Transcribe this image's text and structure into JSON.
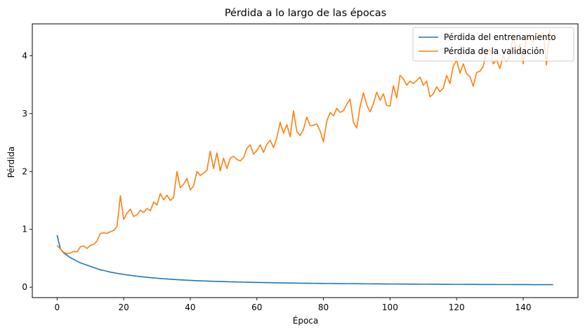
{
  "chart_data": {
    "type": "line",
    "title": "Pérdida a lo largo de las épocas",
    "xlabel": "Época",
    "ylabel": "Pérdida",
    "xlim": [
      -7.45,
      156.45
    ],
    "ylim": [
      -0.18,
      4.55
    ],
    "xticks": [
      0,
      20,
      40,
      60,
      80,
      100,
      120,
      140
    ],
    "yticks": [
      0,
      1,
      2,
      3,
      4
    ],
    "grid": false,
    "legend_position": "top-right",
    "x": [
      0,
      1,
      2,
      3,
      4,
      5,
      6,
      7,
      8,
      9,
      10,
      11,
      12,
      13,
      14,
      15,
      16,
      17,
      18,
      19,
      20,
      21,
      22,
      23,
      24,
      25,
      26,
      27,
      28,
      29,
      30,
      31,
      32,
      33,
      34,
      35,
      36,
      37,
      38,
      39,
      40,
      41,
      42,
      43,
      44,
      45,
      46,
      47,
      48,
      49,
      50,
      51,
      52,
      53,
      54,
      55,
      56,
      57,
      58,
      59,
      60,
      61,
      62,
      63,
      64,
      65,
      66,
      67,
      68,
      69,
      70,
      71,
      72,
      73,
      74,
      75,
      76,
      77,
      78,
      79,
      80,
      81,
      82,
      83,
      84,
      85,
      86,
      87,
      88,
      89,
      90,
      91,
      92,
      93,
      94,
      95,
      96,
      97,
      98,
      99,
      100,
      101,
      102,
      103,
      104,
      105,
      106,
      107,
      108,
      109,
      110,
      111,
      112,
      113,
      114,
      115,
      116,
      117,
      118,
      119,
      120,
      121,
      122,
      123,
      124,
      125,
      126,
      127,
      128,
      129,
      130,
      131,
      132,
      133,
      134,
      135,
      136,
      137,
      138,
      139,
      140,
      141,
      142,
      143,
      144,
      145,
      146,
      147,
      148,
      149
    ],
    "series": [
      {
        "name": "Pérdida del entrenamiento",
        "color": "#1f77b4",
        "values": [
          0.9,
          0.66,
          0.59,
          0.55,
          0.51,
          0.48,
          0.45,
          0.42,
          0.4,
          0.38,
          0.36,
          0.34,
          0.32,
          0.3,
          0.29,
          0.275,
          0.26,
          0.25,
          0.24,
          0.23,
          0.22,
          0.212,
          0.205,
          0.198,
          0.19,
          0.183,
          0.177,
          0.171,
          0.165,
          0.16,
          0.155,
          0.15,
          0.146,
          0.142,
          0.138,
          0.134,
          0.13,
          0.127,
          0.124,
          0.121,
          0.118,
          0.115,
          0.112,
          0.11,
          0.108,
          0.106,
          0.104,
          0.102,
          0.1,
          0.098,
          0.097,
          0.095,
          0.093,
          0.092,
          0.09,
          0.089,
          0.087,
          0.086,
          0.085,
          0.083,
          0.082,
          0.081,
          0.08,
          0.079,
          0.078,
          0.077,
          0.076,
          0.075,
          0.074,
          0.073,
          0.072,
          0.071,
          0.071,
          0.07,
          0.069,
          0.068,
          0.068,
          0.067,
          0.066,
          0.066,
          0.065,
          0.064,
          0.064,
          0.063,
          0.063,
          0.062,
          0.062,
          0.061,
          0.061,
          0.06,
          0.06,
          0.059,
          0.059,
          0.058,
          0.058,
          0.057,
          0.057,
          0.057,
          0.056,
          0.056,
          0.055,
          0.055,
          0.055,
          0.054,
          0.054,
          0.054,
          0.053,
          0.053,
          0.053,
          0.052,
          0.052,
          0.052,
          0.051,
          0.051,
          0.051,
          0.05,
          0.05,
          0.05,
          0.05,
          0.049,
          0.049,
          0.049,
          0.049,
          0.048,
          0.048,
          0.048,
          0.048,
          0.047,
          0.047,
          0.047,
          0.047,
          0.047,
          0.046,
          0.046,
          0.046,
          0.046,
          0.046,
          0.045,
          0.045,
          0.045,
          0.045,
          0.045,
          0.045,
          0.044,
          0.044,
          0.044,
          0.044,
          0.044,
          0.044,
          0.044
        ]
      },
      {
        "name": "Pérdida de la validación",
        "color": "#ff7f0e",
        "values": [
          0.72,
          0.66,
          0.6,
          0.58,
          0.59,
          0.62,
          0.61,
          0.7,
          0.71,
          0.67,
          0.72,
          0.74,
          0.8,
          0.93,
          0.94,
          0.93,
          0.96,
          0.98,
          1.05,
          1.58,
          1.17,
          1.28,
          1.35,
          1.22,
          1.25,
          1.33,
          1.29,
          1.36,
          1.32,
          1.47,
          1.42,
          1.62,
          1.51,
          1.59,
          1.5,
          1.55,
          2.0,
          1.72,
          1.78,
          1.88,
          1.68,
          1.75,
          2.0,
          1.93,
          1.97,
          2.02,
          2.35,
          2.05,
          2.32,
          2.01,
          2.23,
          2.05,
          2.23,
          2.26,
          2.21,
          2.18,
          2.24,
          2.4,
          2.46,
          2.3,
          2.36,
          2.46,
          2.33,
          2.47,
          2.54,
          2.41,
          2.58,
          2.85,
          2.66,
          2.81,
          2.6,
          3.05,
          2.69,
          2.62,
          2.73,
          2.94,
          2.79,
          2.8,
          2.82,
          2.7,
          2.51,
          2.87,
          3.02,
          2.96,
          3.09,
          3.02,
          3.05,
          3.16,
          3.25,
          2.85,
          2.75,
          3.12,
          3.36,
          3.15,
          3.03,
          3.17,
          3.37,
          3.23,
          3.34,
          3.14,
          3.13,
          3.48,
          3.27,
          3.66,
          3.6,
          3.49,
          3.56,
          3.52,
          3.57,
          3.63,
          3.49,
          3.56,
          3.29,
          3.34,
          3.46,
          3.38,
          3.44,
          3.66,
          3.52,
          3.82,
          3.92,
          3.7,
          3.86,
          3.69,
          3.64,
          3.47,
          3.71,
          3.73,
          3.82,
          4.05,
          4.12,
          3.86,
          3.93,
          3.78,
          4.0,
          3.9,
          3.99,
          4.36,
          4.05,
          4.2,
          3.86,
          4.37,
          4.3,
          4.23,
          4.4,
          4.35,
          4.4,
          3.84,
          4.43,
          4.25
        ]
      }
    ]
  }
}
